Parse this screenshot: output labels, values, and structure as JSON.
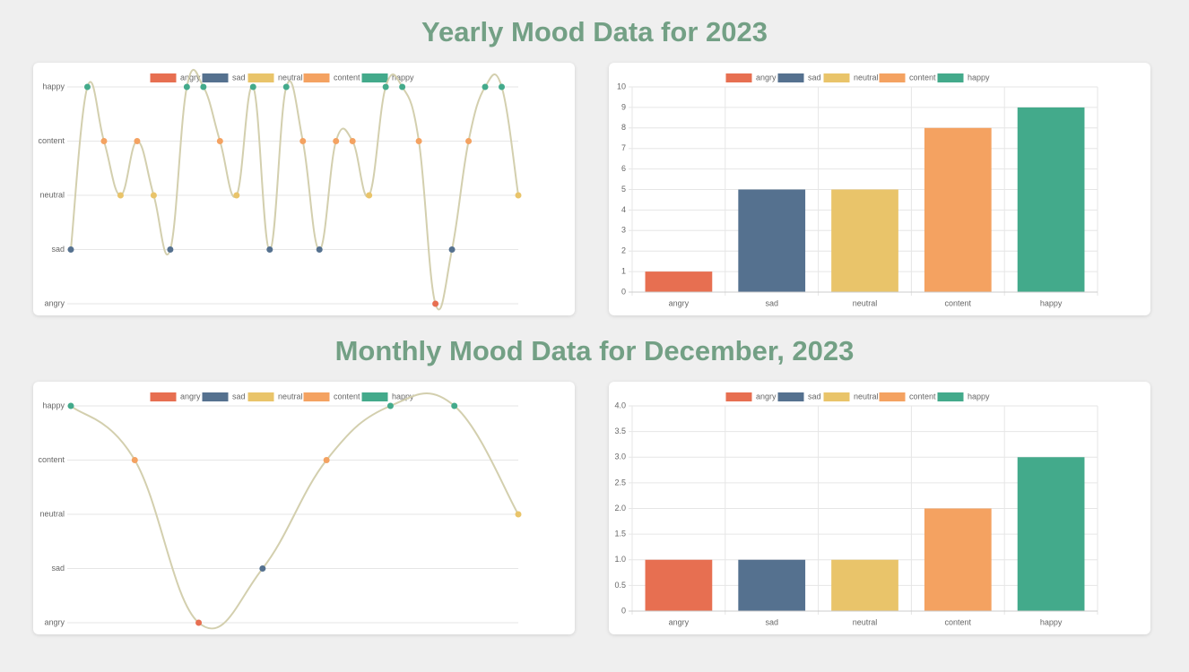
{
  "headings": [
    "Yearly Mood Data for 2023",
    "Monthly Mood Data for December, 2023"
  ],
  "chart_data": [
    {
      "type": "line",
      "legend": [
        {
          "name": "angry",
          "color": "#e76f51"
        },
        {
          "name": "sad",
          "color": "#55718f"
        },
        {
          "name": "neutral",
          "color": "#e9c46a"
        },
        {
          "name": "content",
          "color": "#f4a261"
        },
        {
          "name": "happy",
          "color": "#43aa8b"
        }
      ],
      "line_color": "#d3cfae",
      "values": [
        1,
        4,
        3,
        2,
        3,
        2,
        1,
        4,
        4,
        3,
        2,
        4,
        1,
        4,
        3,
        1,
        3,
        3,
        2,
        4,
        4,
        3,
        0,
        1,
        3,
        4,
        4,
        2
      ],
      "ylim": [
        0,
        4
      ],
      "yticks": [
        {
          "value": 0,
          "label": "angry"
        },
        {
          "value": 1,
          "label": "sad"
        },
        {
          "value": 2,
          "label": "neutral"
        },
        {
          "value": 3,
          "label": "content"
        },
        {
          "value": 4,
          "label": "happy"
        }
      ],
      "grid": true
    },
    {
      "type": "bar",
      "legend": [
        {
          "name": "angry",
          "color": "#e76f51"
        },
        {
          "name": "sad",
          "color": "#55718f"
        },
        {
          "name": "neutral",
          "color": "#e9c46a"
        },
        {
          "name": "content",
          "color": "#f4a261"
        },
        {
          "name": "happy",
          "color": "#43aa8b"
        }
      ],
      "categories": [
        "angry",
        "sad",
        "neutral",
        "content",
        "happy"
      ],
      "values": [
        1,
        5,
        5,
        8,
        9
      ],
      "ylim": [
        0,
        10
      ],
      "yticks": [
        0,
        1,
        2,
        3,
        4,
        5,
        6,
        7,
        8,
        9,
        10
      ],
      "grid": true
    },
    {
      "type": "line",
      "legend": [
        {
          "name": "angry",
          "color": "#e76f51"
        },
        {
          "name": "sad",
          "color": "#55718f"
        },
        {
          "name": "neutral",
          "color": "#e9c46a"
        },
        {
          "name": "content",
          "color": "#f4a261"
        },
        {
          "name": "happy",
          "color": "#43aa8b"
        }
      ],
      "line_color": "#d3cfae",
      "values": [
        4,
        3,
        0,
        1,
        3,
        4,
        4,
        2
      ],
      "ylim": [
        0,
        4
      ],
      "yticks": [
        {
          "value": 0,
          "label": "angry"
        },
        {
          "value": 1,
          "label": "sad"
        },
        {
          "value": 2,
          "label": "neutral"
        },
        {
          "value": 3,
          "label": "content"
        },
        {
          "value": 4,
          "label": "happy"
        }
      ],
      "grid": true
    },
    {
      "type": "bar",
      "legend": [
        {
          "name": "angry",
          "color": "#e76f51"
        },
        {
          "name": "sad",
          "color": "#55718f"
        },
        {
          "name": "neutral",
          "color": "#e9c46a"
        },
        {
          "name": "content",
          "color": "#f4a261"
        },
        {
          "name": "happy",
          "color": "#43aa8b"
        }
      ],
      "categories": [
        "angry",
        "sad",
        "neutral",
        "content",
        "happy"
      ],
      "values": [
        1,
        1,
        1,
        2,
        3
      ],
      "ylim": [
        0,
        4
      ],
      "yticks": [
        0,
        0.5,
        {
          "value": 1,
          "label": "1.0"
        },
        1.5,
        {
          "value": 2,
          "label": "2.0"
        },
        2.5,
        {
          "value": 3,
          "label": "3.0"
        },
        3.5,
        {
          "value": 4,
          "label": "4.0"
        }
      ],
      "grid": true
    }
  ]
}
